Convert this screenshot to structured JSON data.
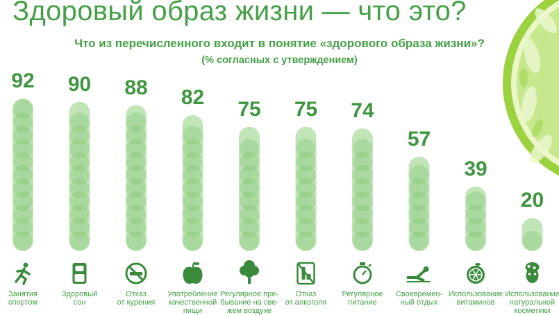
{
  "title": "Здоровый образ жизни — что это?",
  "subtitle": "Что из перечисленного входит в понятие «здорового образа жизни»?",
  "note": "(% согласных с утверждением)",
  "colors": {
    "text": "#45a047",
    "value": "#3e963f",
    "bar": "#8fcf7e",
    "bar_dark": "#7cc26c",
    "icon": "#3a8a3c",
    "lime_peel": "#9cd13f",
    "lime_pulp": "#d7f0a6"
  },
  "chart_data": {
    "type": "bar",
    "title": "Что из перечисленного входит в понятие «здорового образа жизни»?",
    "subtitle": "(% согласных с утверждением)",
    "categories": [
      "Занятия спортом",
      "Здоровый сон",
      "Отказ от курения",
      "Употребление качественной пищи",
      "Регулярное пре-бывание на све-жем воздухе",
      "Отказ от алкоголя",
      "Регулярное питание",
      "Своевремен-ный отдых",
      "Использование витаминов",
      "Использование натуральной косметики"
    ],
    "labels": [
      "Занятия\nспортом",
      "Здоровый\nсон",
      "Отказ\nот курения",
      "Употребление\nкачественной\nпищи",
      "Регулярное пре-\nбывание на све-\nжем воздухе",
      "Отказ\nот алкоголя",
      "Регулярное\nпитание",
      "Своевремен-\nный отдых",
      "Использование\nвитаминов",
      "Использование\nнатуральной\nкосметики"
    ],
    "values": [
      92,
      90,
      88,
      82,
      75,
      75,
      74,
      57,
      39,
      20
    ],
    "icons": [
      "runner-icon",
      "sleeping-person-icon",
      "no-smoking-icon",
      "apple-icon",
      "tree-icon",
      "no-alcohol-icon",
      "stopwatch-icon",
      "resting-person-icon",
      "orange-icon",
      "face-mask-icon"
    ],
    "ylim": [
      0,
      100
    ],
    "grid": false,
    "legend": "none"
  }
}
